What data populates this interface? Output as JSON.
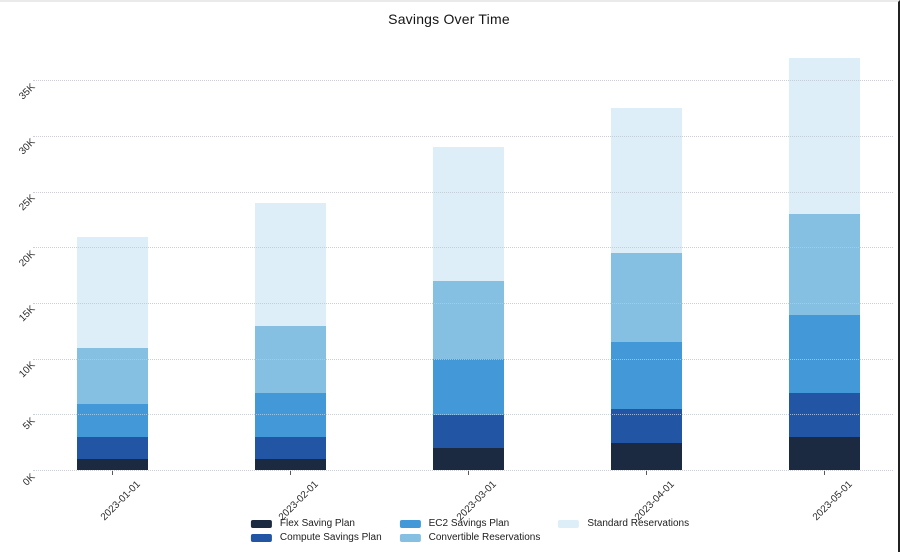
{
  "panel": {
    "background": "#ffffff",
    "top_border_color": "#e9eaec",
    "right_border_color": "#212121"
  },
  "chart_data": {
    "type": "bar",
    "stacked": true,
    "title": "Savings Over Time",
    "unit": "K",
    "categories": [
      "2023-01-01",
      "2023-02-01",
      "2023-03-01",
      "2023-04-01",
      "2023-05-01"
    ],
    "series": [
      {
        "name": "Flex Saving Plan",
        "color": "#1b2a40",
        "values_k": [
          1,
          1,
          2,
          2.5,
          3
        ]
      },
      {
        "name": "Compute Savings Plan",
        "color": "#2255a3",
        "values_k": [
          2,
          2,
          3,
          3,
          4
        ]
      },
      {
        "name": "EC2 Savings Plan",
        "color": "#4399d8",
        "values_k": [
          3,
          4,
          5,
          6,
          7
        ]
      },
      {
        "name": "Convertible Reservations",
        "color": "#85c0e2",
        "values_k": [
          5,
          6,
          7,
          8,
          9
        ]
      },
      {
        "name": "Standard Reservations",
        "color": "#ddeef9",
        "values_k": [
          10,
          11,
          12,
          13,
          14
        ]
      }
    ],
    "totals_k": [
      21,
      24,
      29,
      32.5,
      37
    ],
    "y_axis": {
      "ticks_k": [
        0,
        5,
        10,
        15,
        20,
        25,
        30,
        35
      ],
      "tick_labels": [
        "0K",
        "5K",
        "10K",
        "15K",
        "20K",
        "25K",
        "30K",
        "35K"
      ],
      "max_k": 37
    },
    "grid": {
      "visible": true,
      "style": "dotted"
    },
    "legend_position": "bottom",
    "tick_label_rotation_deg": 45
  }
}
